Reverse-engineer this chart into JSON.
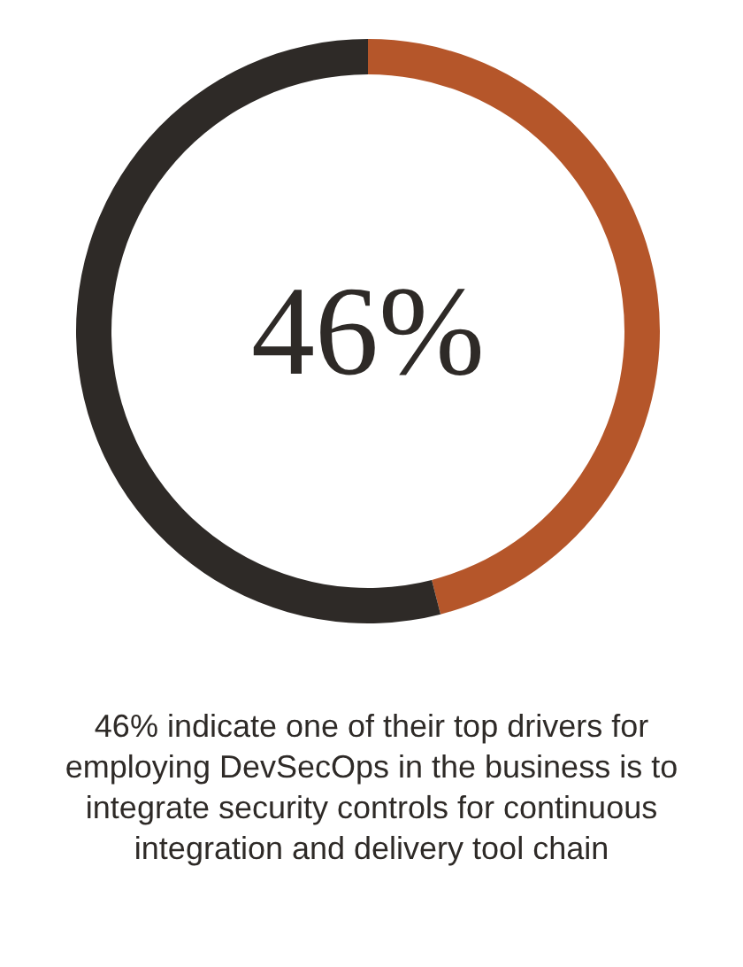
{
  "chart_data": {
    "type": "donut",
    "categories": [
      null,
      null
    ],
    "values": [
      46,
      54
    ],
    "colors": [
      "#b5562a",
      "#2e2a27"
    ],
    "annotations": [
      "46%",
      "46% indicate one of their top drivers for employing DevSecOps in the business is to integrate security controls for continuous integration and delivery tool chain"
    ],
    "legend": false
  }
}
